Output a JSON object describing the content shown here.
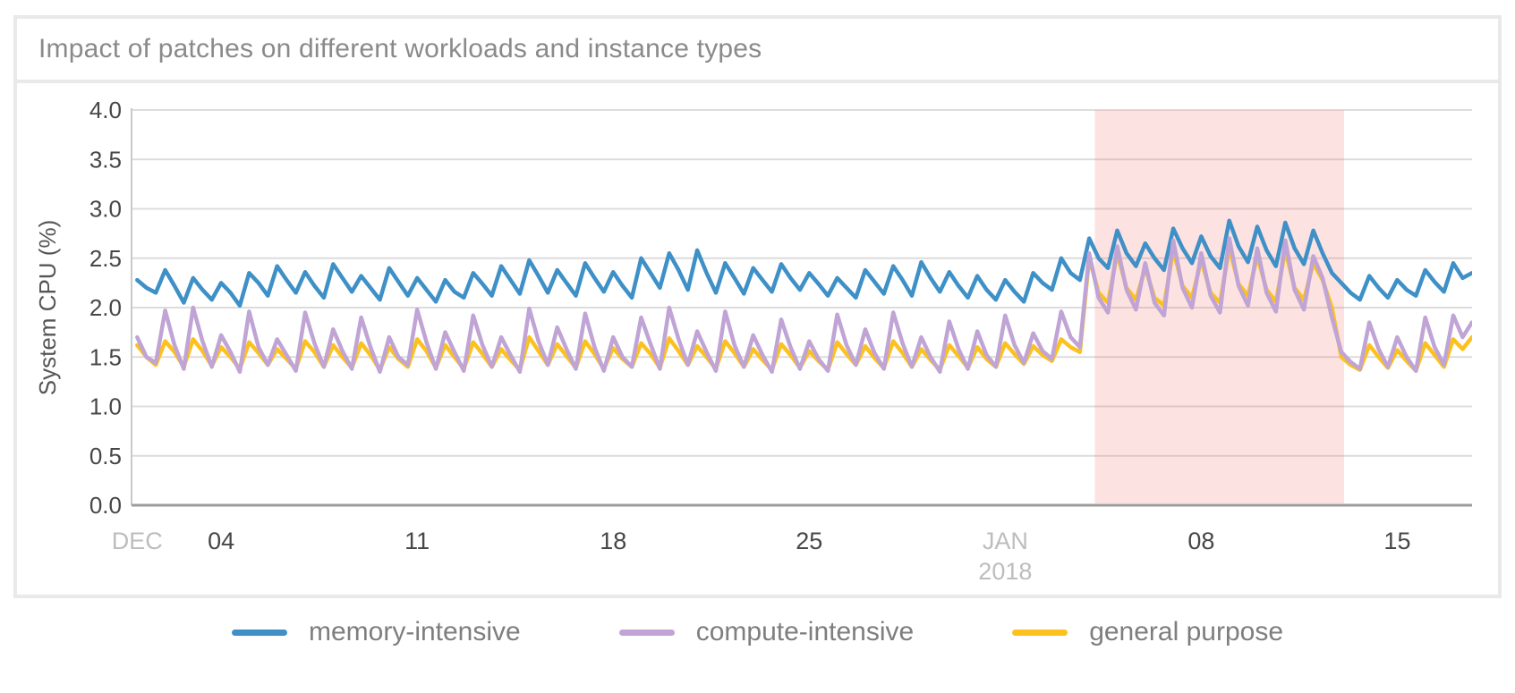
{
  "chart_data": {
    "type": "line",
    "title": "Impact of patches on different workloads and instance types",
    "ylabel": "System CPU (%)",
    "xlabel": "",
    "ylim": [
      0.0,
      4.0
    ],
    "y_ticks": [
      "0.0",
      "0.5",
      "1.0",
      "1.5",
      "2.0",
      "2.5",
      "3.0",
      "3.5",
      "4.0"
    ],
    "grid": true,
    "legend_position": "bottom",
    "x_start_date": "DEC",
    "samples_per_day": 3,
    "x_ticks": [
      {
        "label": "DEC",
        "day": 0,
        "muted": true
      },
      {
        "label": "04",
        "day": 3,
        "muted": false
      },
      {
        "label": "11",
        "day": 10,
        "muted": false
      },
      {
        "label": "18",
        "day": 17,
        "muted": false
      },
      {
        "label": "25",
        "day": 24,
        "muted": false
      },
      {
        "label": "JAN",
        "sub": "2018",
        "day": 31,
        "muted": true
      },
      {
        "label": "08",
        "day": 38,
        "muted": false
      },
      {
        "label": "15",
        "day": 45,
        "muted": false
      }
    ],
    "highlight_band": {
      "from_day": 34.2,
      "to_day": 43.1,
      "color": "rgba(244,122,122,0.22)"
    },
    "series": [
      {
        "name": "memory-intensive",
        "color": "#3E90C6",
        "values": [
          2.28,
          2.2,
          2.15,
          2.38,
          2.22,
          2.05,
          2.3,
          2.18,
          2.08,
          2.25,
          2.15,
          2.02,
          2.35,
          2.25,
          2.12,
          2.42,
          2.28,
          2.15,
          2.36,
          2.22,
          2.1,
          2.44,
          2.3,
          2.16,
          2.32,
          2.2,
          2.08,
          2.4,
          2.26,
          2.12,
          2.3,
          2.18,
          2.06,
          2.28,
          2.16,
          2.1,
          2.35,
          2.24,
          2.12,
          2.42,
          2.28,
          2.14,
          2.48,
          2.32,
          2.15,
          2.38,
          2.25,
          2.12,
          2.45,
          2.3,
          2.16,
          2.36,
          2.22,
          2.1,
          2.5,
          2.35,
          2.2,
          2.55,
          2.38,
          2.18,
          2.58,
          2.35,
          2.15,
          2.45,
          2.3,
          2.14,
          2.4,
          2.28,
          2.16,
          2.44,
          2.3,
          2.18,
          2.35,
          2.24,
          2.12,
          2.3,
          2.2,
          2.1,
          2.38,
          2.26,
          2.14,
          2.42,
          2.28,
          2.12,
          2.46,
          2.3,
          2.16,
          2.36,
          2.22,
          2.1,
          2.32,
          2.18,
          2.08,
          2.28,
          2.16,
          2.06,
          2.35,
          2.25,
          2.18,
          2.5,
          2.35,
          2.28,
          2.7,
          2.5,
          2.4,
          2.78,
          2.55,
          2.42,
          2.65,
          2.5,
          2.38,
          2.8,
          2.6,
          2.45,
          2.72,
          2.52,
          2.4,
          2.88,
          2.62,
          2.46,
          2.82,
          2.58,
          2.42,
          2.86,
          2.6,
          2.44,
          2.78,
          2.55,
          2.35,
          2.25,
          2.15,
          2.08,
          2.32,
          2.2,
          2.1,
          2.28,
          2.18,
          2.12,
          2.38,
          2.26,
          2.16,
          2.45,
          2.3,
          2.35
        ]
      },
      {
        "name": "compute-intensive",
        "color": "#BFA4D5",
        "values": [
          1.7,
          1.5,
          1.44,
          1.97,
          1.62,
          1.38,
          2.0,
          1.66,
          1.4,
          1.72,
          1.55,
          1.35,
          1.96,
          1.6,
          1.42,
          1.68,
          1.52,
          1.36,
          1.95,
          1.64,
          1.4,
          1.78,
          1.56,
          1.38,
          1.9,
          1.6,
          1.35,
          1.7,
          1.5,
          1.42,
          1.98,
          1.65,
          1.38,
          1.75,
          1.55,
          1.36,
          1.92,
          1.62,
          1.4,
          1.7,
          1.52,
          1.35,
          1.99,
          1.66,
          1.42,
          1.8,
          1.58,
          1.38,
          1.94,
          1.6,
          1.36,
          1.7,
          1.5,
          1.4,
          1.9,
          1.63,
          1.38,
          2.0,
          1.68,
          1.42,
          1.76,
          1.55,
          1.36,
          1.96,
          1.62,
          1.4,
          1.72,
          1.52,
          1.35,
          1.88,
          1.6,
          1.38,
          1.66,
          1.48,
          1.36,
          1.93,
          1.62,
          1.42,
          1.78,
          1.54,
          1.38,
          1.95,
          1.64,
          1.4,
          1.7,
          1.5,
          1.35,
          1.86,
          1.58,
          1.38,
          1.76,
          1.52,
          1.4,
          1.92,
          1.62,
          1.44,
          1.74,
          1.56,
          1.48,
          1.96,
          1.7,
          1.6,
          2.55,
          2.1,
          1.95,
          2.62,
          2.18,
          1.98,
          2.45,
          2.05,
          1.92,
          2.68,
          2.2,
          2.0,
          2.55,
          2.12,
          1.95,
          2.7,
          2.22,
          2.02,
          2.6,
          2.15,
          1.96,
          2.68,
          2.18,
          1.98,
          2.52,
          2.3,
          1.9,
          1.55,
          1.45,
          1.38,
          1.85,
          1.58,
          1.4,
          1.7,
          1.5,
          1.36,
          1.9,
          1.6,
          1.42,
          1.92,
          1.7,
          1.85
        ]
      },
      {
        "name": "general purpose",
        "color": "#FCC11F",
        "values": [
          1.62,
          1.5,
          1.42,
          1.66,
          1.55,
          1.4,
          1.68,
          1.56,
          1.41,
          1.6,
          1.5,
          1.38,
          1.65,
          1.54,
          1.42,
          1.58,
          1.48,
          1.38,
          1.66,
          1.55,
          1.4,
          1.62,
          1.5,
          1.39,
          1.64,
          1.52,
          1.37,
          1.6,
          1.48,
          1.4,
          1.68,
          1.56,
          1.39,
          1.62,
          1.5,
          1.38,
          1.65,
          1.53,
          1.4,
          1.58,
          1.47,
          1.37,
          1.7,
          1.56,
          1.42,
          1.63,
          1.51,
          1.39,
          1.66,
          1.53,
          1.38,
          1.59,
          1.48,
          1.4,
          1.64,
          1.53,
          1.39,
          1.69,
          1.56,
          1.42,
          1.61,
          1.5,
          1.38,
          1.66,
          1.54,
          1.4,
          1.58,
          1.47,
          1.37,
          1.63,
          1.52,
          1.39,
          1.56,
          1.46,
          1.37,
          1.65,
          1.53,
          1.42,
          1.61,
          1.49,
          1.39,
          1.66,
          1.54,
          1.4,
          1.58,
          1.47,
          1.37,
          1.62,
          1.51,
          1.39,
          1.6,
          1.48,
          1.4,
          1.64,
          1.53,
          1.43,
          1.61,
          1.52,
          1.46,
          1.68,
          1.6,
          1.55,
          2.5,
          2.15,
          2.05,
          2.55,
          2.2,
          2.08,
          2.4,
          2.1,
          2.02,
          2.58,
          2.22,
          2.1,
          2.48,
          2.15,
          2.05,
          2.6,
          2.24,
          2.12,
          2.52,
          2.18,
          2.06,
          2.58,
          2.2,
          2.08,
          2.45,
          2.28,
          2.0,
          1.5,
          1.42,
          1.37,
          1.62,
          1.5,
          1.39,
          1.57,
          1.46,
          1.36,
          1.64,
          1.52,
          1.4,
          1.68,
          1.58,
          1.7
        ]
      }
    ]
  },
  "legend": {
    "items": [
      {
        "label": "memory-intensive",
        "color": "#3E90C6"
      },
      {
        "label": "compute-intensive",
        "color": "#BFA4D5"
      },
      {
        "label": "general purpose",
        "color": "#FCC11F"
      }
    ]
  },
  "colors": {
    "panel_border": "#E9E9E9",
    "gridline": "#DCDCDC",
    "x_axis_line": "#9B9B9B",
    "y_axis_line": "#C9C9C9",
    "tick_label": "#474747",
    "muted_tick_label": "#BDBDBD",
    "title_text": "#8A8A8A",
    "axis_title_text": "#565656"
  }
}
